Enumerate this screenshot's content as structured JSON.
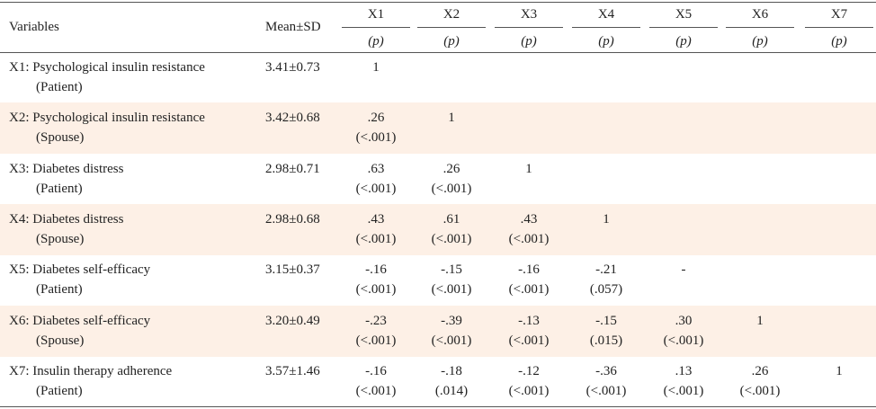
{
  "table": {
    "header": {
      "variables": "Variables",
      "mean_sd": "Mean±SD",
      "columns": [
        {
          "name": "X1",
          "sub": "(p)"
        },
        {
          "name": "X2",
          "sub": "(p)"
        },
        {
          "name": "X3",
          "sub": "(p)"
        },
        {
          "name": "X4",
          "sub": "(p)"
        },
        {
          "name": "X5",
          "sub": "(p)"
        },
        {
          "name": "X6",
          "sub": "(p)"
        },
        {
          "name": "X7",
          "sub": "(p)"
        }
      ]
    },
    "rows": [
      {
        "variable": "X1: Psychological insulin resistance",
        "group": "(Patient)",
        "mean_sd": "3.41±0.73",
        "cells": [
          {
            "r": "1"
          }
        ]
      },
      {
        "variable": "X2: Psychological insulin resistance",
        "group": "(Spouse)",
        "mean_sd": "3.42±0.68",
        "cells": [
          {
            "r": ".26",
            "p": "(<.001)"
          },
          {
            "r": "1"
          }
        ]
      },
      {
        "variable": "X3: Diabetes distress",
        "group": "(Patient)",
        "mean_sd": "2.98±0.71",
        "cells": [
          {
            "r": ".63",
            "p": "(<.001)"
          },
          {
            "r": ".26",
            "p": "(<.001)"
          },
          {
            "r": "1"
          }
        ]
      },
      {
        "variable": "X4: Diabetes distress",
        "group": "(Spouse)",
        "mean_sd": "2.98±0.68",
        "cells": [
          {
            "r": ".43",
            "p": "(<.001)"
          },
          {
            "r": ".61",
            "p": "(<.001)"
          },
          {
            "r": ".43",
            "p": "(<.001)"
          },
          {
            "r": "1"
          }
        ]
      },
      {
        "variable": "X5: Diabetes self-efficacy",
        "group": "(Patient)",
        "mean_sd": "3.15±0.37",
        "cells": [
          {
            "r": "-.16",
            "p": "(<.001)"
          },
          {
            "r": "-.15",
            "p": "(<.001)"
          },
          {
            "r": "-.16",
            "p": "(<.001)"
          },
          {
            "r": "-.21",
            "p": "(.057)"
          },
          {
            "r": "-"
          }
        ]
      },
      {
        "variable": "X6: Diabetes self-efficacy",
        "group": "(Spouse)",
        "mean_sd": "3.20±0.49",
        "cells": [
          {
            "r": "-.23",
            "p": "(<.001)"
          },
          {
            "r": "-.39",
            "p": "(<.001)"
          },
          {
            "r": "-.13",
            "p": "(<.001)"
          },
          {
            "r": "-.15",
            "p": "(.015)"
          },
          {
            "r": ".30",
            "p": "(<.001)"
          },
          {
            "r": "1"
          }
        ]
      },
      {
        "variable": "X7: Insulin therapy adherence",
        "group": "(Patient)",
        "mean_sd": "3.57±1.46",
        "cells": [
          {
            "r": "-.16",
            "p": "(<.001)"
          },
          {
            "r": "-.18",
            "p": "(.014)"
          },
          {
            "r": "-.12",
            "p": "(<.001)"
          },
          {
            "r": "-.36",
            "p": "(<.001)"
          },
          {
            "r": ".13",
            "p": "(<.001)"
          },
          {
            "r": ".26",
            "p": "(<.001)"
          },
          {
            "r": "1"
          }
        ]
      }
    ]
  }
}
